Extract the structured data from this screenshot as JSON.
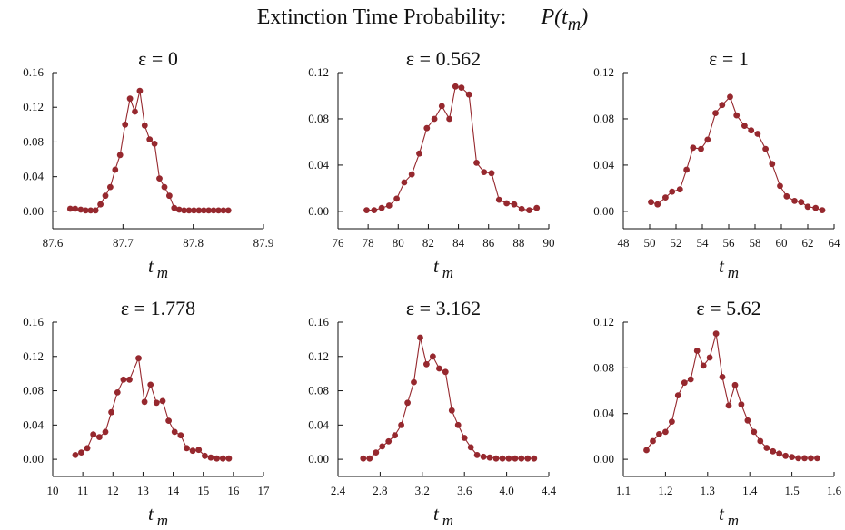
{
  "title": {
    "text": "Extinction Time Probability:",
    "func_name": "P(t",
    "func_sub": "m",
    "func_close": ")"
  },
  "colors": {
    "series": "#96282e",
    "axis": "#111111"
  },
  "chart_data": [
    {
      "type": "line",
      "title": "ε  = 0",
      "xlabel": "t",
      "xlabel_sub": "m",
      "xlim": [
        87.6,
        87.9
      ],
      "xticks": [
        87.6,
        87.7,
        87.8,
        87.9
      ],
      "ylim": [
        -0.02,
        0.16
      ],
      "yticks": [
        0.0,
        0.04,
        0.08,
        0.12,
        0.16
      ],
      "x": [
        87.625,
        87.632,
        87.64,
        87.647,
        87.654,
        87.661,
        87.668,
        87.675,
        87.682,
        87.689,
        87.696,
        87.703,
        87.71,
        87.717,
        87.724,
        87.731,
        87.738,
        87.745,
        87.752,
        87.759,
        87.766,
        87.773,
        87.78,
        87.787,
        87.794,
        87.801,
        87.808,
        87.815,
        87.822,
        87.829,
        87.836,
        87.843,
        87.85
      ],
      "y": [
        0.003,
        0.003,
        0.002,
        0.001,
        0.001,
        0.001,
        0.008,
        0.018,
        0.028,
        0.048,
        0.065,
        0.1,
        0.13,
        0.115,
        0.139,
        0.099,
        0.083,
        0.078,
        0.038,
        0.028,
        0.018,
        0.004,
        0.002,
        0.001,
        0.001,
        0.001,
        0.001,
        0.001,
        0.001,
        0.001,
        0.001,
        0.001,
        0.001
      ]
    },
    {
      "type": "line",
      "title": "ε  = 0.562",
      "xlabel": "t",
      "xlabel_sub": "m",
      "xlim": [
        76,
        90
      ],
      "xticks": [
        76,
        78,
        80,
        82,
        84,
        86,
        88,
        90
      ],
      "ylim": [
        -0.015,
        0.12
      ],
      "yticks": [
        0.0,
        0.04,
        0.08,
        0.12
      ],
      "x": [
        77.9,
        78.4,
        78.9,
        79.4,
        79.9,
        80.4,
        80.9,
        81.4,
        81.9,
        82.4,
        82.9,
        83.4,
        83.8,
        84.2,
        84.7,
        85.2,
        85.7,
        86.2,
        86.7,
        87.2,
        87.7,
        88.2,
        88.7,
        89.2
      ],
      "y": [
        0.001,
        0.001,
        0.003,
        0.005,
        0.011,
        0.025,
        0.032,
        0.05,
        0.072,
        0.08,
        0.091,
        0.08,
        0.108,
        0.107,
        0.101,
        0.042,
        0.034,
        0.033,
        0.01,
        0.007,
        0.006,
        0.002,
        0.001,
        0.003
      ]
    },
    {
      "type": "line",
      "title": "ε  = 1",
      "xlabel": "t",
      "xlabel_sub": "m",
      "xlim": [
        48,
        64
      ],
      "xticks": [
        48,
        50,
        52,
        54,
        56,
        58,
        60,
        62,
        64
      ],
      "ylim": [
        -0.015,
        0.12
      ],
      "yticks": [
        0.0,
        0.04,
        0.08,
        0.12
      ],
      "x": [
        50.1,
        50.6,
        51.2,
        51.7,
        52.3,
        52.8,
        53.3,
        53.9,
        54.4,
        55.0,
        55.5,
        56.1,
        56.6,
        57.2,
        57.7,
        58.2,
        58.8,
        59.3,
        59.9,
        60.4,
        61.0,
        61.5,
        62.0,
        62.6,
        63.1
      ],
      "y": [
        0.008,
        0.006,
        0.012,
        0.017,
        0.019,
        0.036,
        0.055,
        0.054,
        0.062,
        0.085,
        0.092,
        0.099,
        0.083,
        0.074,
        0.07,
        0.067,
        0.054,
        0.041,
        0.022,
        0.013,
        0.009,
        0.008,
        0.004,
        0.003,
        0.001
      ]
    },
    {
      "type": "line",
      "title": "ε  = 1.778",
      "xlabel": "t",
      "xlabel_sub": "m",
      "xlim": [
        10,
        17
      ],
      "xticks": [
        10,
        11,
        12,
        13,
        14,
        15,
        16,
        17
      ],
      "ylim": [
        -0.02,
        0.16
      ],
      "yticks": [
        0.0,
        0.04,
        0.08,
        0.12,
        0.16
      ],
      "x": [
        10.75,
        10.95,
        11.15,
        11.35,
        11.55,
        11.75,
        11.95,
        12.15,
        12.35,
        12.55,
        12.85,
        13.05,
        13.25,
        13.45,
        13.65,
        13.85,
        14.05,
        14.25,
        14.45,
        14.65,
        14.85,
        15.05,
        15.25,
        15.45,
        15.65,
        15.85
      ],
      "y": [
        0.005,
        0.008,
        0.013,
        0.029,
        0.026,
        0.032,
        0.055,
        0.078,
        0.093,
        0.093,
        0.118,
        0.067,
        0.087,
        0.066,
        0.068,
        0.045,
        0.032,
        0.028,
        0.013,
        0.01,
        0.011,
        0.004,
        0.002,
        0.001,
        0.001,
        0.001
      ]
    },
    {
      "type": "line",
      "title": "ε  = 3.162",
      "xlabel": "t",
      "xlabel_sub": "m",
      "xlim": [
        2.4,
        4.4
      ],
      "xticks": [
        2.4,
        2.8,
        3.2,
        3.6,
        4.0,
        4.4
      ],
      "ylim": [
        -0.02,
        0.16
      ],
      "yticks": [
        0.0,
        0.04,
        0.08,
        0.12,
        0.16
      ],
      "x": [
        2.64,
        2.7,
        2.76,
        2.82,
        2.88,
        2.94,
        3.0,
        3.06,
        3.12,
        3.18,
        3.24,
        3.3,
        3.36,
        3.42,
        3.48,
        3.54,
        3.6,
        3.66,
        3.72,
        3.78,
        3.84,
        3.9,
        3.96,
        4.02,
        4.08,
        4.14,
        4.2,
        4.26
      ],
      "y": [
        0.001,
        0.001,
        0.008,
        0.015,
        0.021,
        0.028,
        0.04,
        0.066,
        0.09,
        0.142,
        0.111,
        0.12,
        0.106,
        0.102,
        0.057,
        0.04,
        0.025,
        0.014,
        0.005,
        0.003,
        0.002,
        0.001,
        0.001,
        0.001,
        0.001,
        0.001,
        0.001,
        0.001
      ]
    },
    {
      "type": "line",
      "title": "ε  = 5.62",
      "xlabel": "t",
      "xlabel_sub": "m",
      "xlim": [
        1.1,
        1.6
      ],
      "xticks": [
        1.1,
        1.2,
        1.3,
        1.4,
        1.5,
        1.6
      ],
      "ylim": [
        -0.015,
        0.12
      ],
      "yticks": [
        0.0,
        0.04,
        0.08,
        0.12
      ],
      "x": [
        1.155,
        1.17,
        1.185,
        1.2,
        1.215,
        1.23,
        1.245,
        1.26,
        1.275,
        1.29,
        1.305,
        1.32,
        1.335,
        1.35,
        1.365,
        1.38,
        1.395,
        1.41,
        1.425,
        1.44,
        1.455,
        1.47,
        1.485,
        1.5,
        1.515,
        1.53,
        1.545,
        1.56
      ],
      "y": [
        0.008,
        0.016,
        0.022,
        0.024,
        0.033,
        0.056,
        0.067,
        0.07,
        0.095,
        0.082,
        0.089,
        0.11,
        0.072,
        0.047,
        0.065,
        0.048,
        0.034,
        0.024,
        0.016,
        0.01,
        0.007,
        0.005,
        0.003,
        0.002,
        0.001,
        0.001,
        0.001,
        0.001
      ]
    }
  ]
}
